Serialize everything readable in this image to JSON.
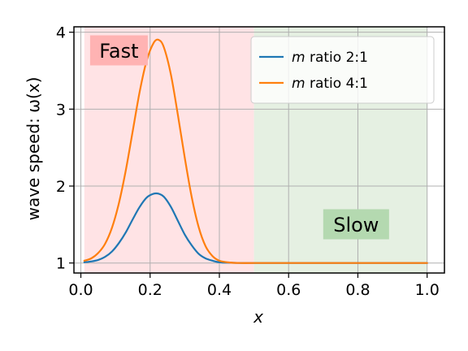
{
  "chart_data": {
    "type": "line",
    "xlabel": "x",
    "ylabel": "wave speed: ω(x)",
    "xlim": [
      -0.02,
      1.05
    ],
    "ylim": [
      0.87,
      4.07
    ],
    "xticks": [
      "0.0",
      "0.2",
      "0.4",
      "0.6",
      "0.8",
      "1.0"
    ],
    "yticks": [
      "1",
      "2",
      "3",
      "4"
    ],
    "grid": true,
    "legend_placement": "top-right",
    "regions": [
      {
        "label": "Fast",
        "x_range": [
          0.01,
          0.5
        ],
        "color": "#ffe3e5",
        "label_bg": "#ffb3b3"
      },
      {
        "label": "Slow",
        "x_range": [
          0.5,
          1.0
        ],
        "color": "#e5f0e2",
        "label_bg": "#b4d9b0"
      }
    ],
    "series": [
      {
        "name": "m ratio 2:1",
        "color": "#1f77b4",
        "x": [
          0.01,
          0.03,
          0.05,
          0.07,
          0.09,
          0.11,
          0.13,
          0.15,
          0.17,
          0.19,
          0.21,
          0.225,
          0.24,
          0.26,
          0.28,
          0.3,
          0.32,
          0.34,
          0.36,
          0.38,
          0.4,
          0.43,
          0.46,
          0.5,
          0.6,
          0.7,
          0.8,
          0.9,
          1.0
        ],
        "y": [
          1.01,
          1.02,
          1.04,
          1.08,
          1.15,
          1.26,
          1.4,
          1.57,
          1.73,
          1.85,
          1.9,
          1.9,
          1.86,
          1.73,
          1.55,
          1.37,
          1.23,
          1.12,
          1.06,
          1.03,
          1.01,
          1.003,
          1.0,
          1.0,
          1.0,
          1.0,
          1.0,
          1.0,
          1.0
        ]
      },
      {
        "name": "m ratio 4:1",
        "color": "#ff7f0e",
        "x": [
          0.01,
          0.03,
          0.05,
          0.07,
          0.09,
          0.11,
          0.13,
          0.15,
          0.17,
          0.19,
          0.21,
          0.225,
          0.24,
          0.26,
          0.28,
          0.3,
          0.32,
          0.34,
          0.36,
          0.38,
          0.4,
          0.43,
          0.46,
          0.5,
          0.6,
          0.7,
          0.8,
          0.9,
          1.0
        ],
        "y": [
          1.03,
          1.06,
          1.13,
          1.25,
          1.46,
          1.78,
          2.21,
          2.72,
          3.23,
          3.63,
          3.86,
          3.9,
          3.8,
          3.45,
          2.93,
          2.37,
          1.86,
          1.47,
          1.22,
          1.09,
          1.03,
          1.006,
          1.0,
          1.0,
          1.0,
          1.0,
          1.0,
          1.0,
          1.0
        ]
      }
    ]
  }
}
